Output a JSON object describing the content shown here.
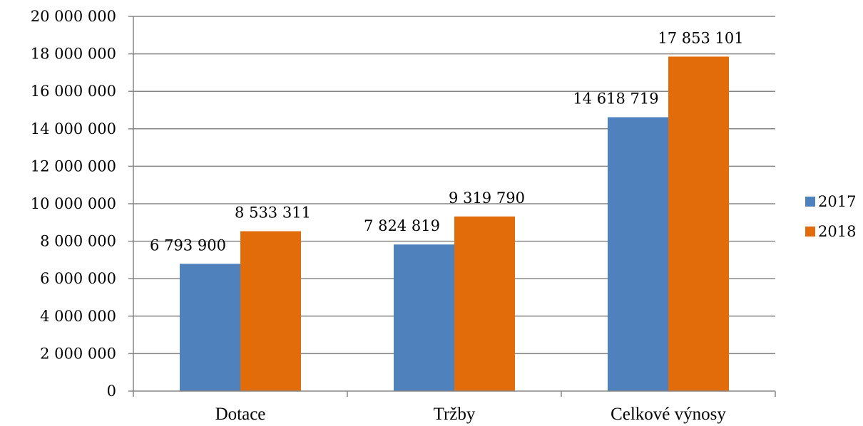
{
  "chart_data": {
    "type": "bar",
    "title": "",
    "xlabel": "",
    "ylabel": "",
    "categories": [
      "Dotace",
      "Tržby",
      "Celkové výnosy"
    ],
    "series": [
      {
        "name": "2017",
        "color": "#4f81bd",
        "values": [
          6793900,
          7824819,
          14618719
        ],
        "labels": [
          "6 793 900",
          "7 824 819",
          "14 618 719"
        ]
      },
      {
        "name": "2018",
        "color": "#e36c0a",
        "values": [
          8533311,
          9319790,
          17853101
        ],
        "labels": [
          "8 533 311",
          "9 319 790",
          "17 853 101"
        ]
      }
    ],
    "ylim": [
      0,
      20000000
    ],
    "yticks": [
      0,
      2000000,
      4000000,
      6000000,
      8000000,
      10000000,
      12000000,
      14000000,
      16000000,
      18000000,
      20000000
    ],
    "ytick_labels": [
      "0",
      "2 000 000",
      "4 000 000",
      "6 000 000",
      "8 000 000",
      "10 000 000",
      "12 000 000",
      "14 000 000",
      "16 000 000",
      "18 000 000",
      "20 000 000"
    ],
    "grid": true,
    "gridline_color": "#868686",
    "legend_position": "right"
  }
}
